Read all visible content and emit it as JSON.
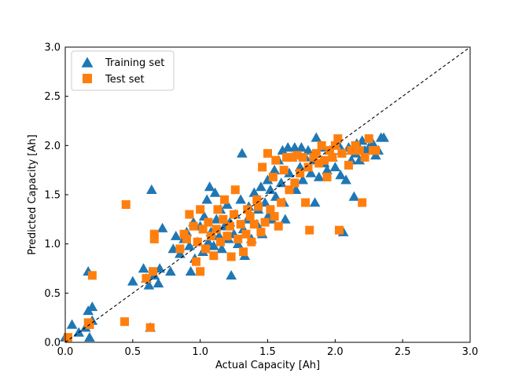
{
  "chart_data": {
    "type": "scatter",
    "title": "",
    "xlabel": "Actual Capacity [Ah]",
    "ylabel": "Predicted Capacity [Ah]",
    "xlim": [
      0.0,
      3.0
    ],
    "ylim": [
      0.0,
      3.0
    ],
    "xticks": [
      "0.0",
      "0.5",
      "1.0",
      "1.5",
      "2.0",
      "2.5",
      "3.0"
    ],
    "yticks": [
      "0.0",
      "0.5",
      "1.0",
      "1.5",
      "2.0",
      "2.5",
      "3.0"
    ],
    "tick_direction": "in",
    "grid": false,
    "legend_position": "top-left",
    "reference_line": {
      "label": "y = x",
      "style": "dashed",
      "color": "#000000",
      "from": [
        0,
        0
      ],
      "to": [
        3,
        3
      ]
    },
    "series": [
      {
        "name": "Training set",
        "marker": "triangle",
        "color": "#1f77b4",
        "points": [
          [
            0.0,
            0.05
          ],
          [
            0.05,
            0.18
          ],
          [
            0.1,
            0.1
          ],
          [
            0.15,
            0.15
          ],
          [
            0.17,
            0.32
          ],
          [
            0.17,
            0.72
          ],
          [
            0.18,
            0.05
          ],
          [
            0.2,
            0.22
          ],
          [
            0.2,
            0.36
          ],
          [
            0.5,
            0.62
          ],
          [
            0.58,
            0.75
          ],
          [
            0.6,
            0.65
          ],
          [
            0.62,
            0.58
          ],
          [
            0.63,
            0.15
          ],
          [
            0.64,
            1.55
          ],
          [
            0.66,
            0.68
          ],
          [
            0.69,
            0.6
          ],
          [
            0.7,
            0.75
          ],
          [
            0.72,
            1.16
          ],
          [
            0.78,
            0.72
          ],
          [
            0.8,
            0.95
          ],
          [
            0.82,
            1.08
          ],
          [
            0.85,
            0.9
          ],
          [
            0.88,
            1.05
          ],
          [
            0.9,
            1.12
          ],
          [
            0.92,
            0.98
          ],
          [
            0.93,
            0.72
          ],
          [
            0.95,
            1.22
          ],
          [
            0.96,
            0.85
          ],
          [
            0.98,
            1.02
          ],
          [
            1.0,
            1.18
          ],
          [
            1.02,
            0.92
          ],
          [
            1.03,
            1.28
          ],
          [
            1.05,
            1.45
          ],
          [
            1.06,
            1.02
          ],
          [
            1.07,
            1.58
          ],
          [
            1.08,
            1.12
          ],
          [
            1.1,
            0.98
          ],
          [
            1.11,
            1.52
          ],
          [
            1.12,
            1.25
          ],
          [
            1.14,
            1.08
          ],
          [
            1.15,
            1.35
          ],
          [
            1.16,
            0.95
          ],
          [
            1.18,
            1.18
          ],
          [
            1.2,
            1.4
          ],
          [
            1.21,
            1.05
          ],
          [
            1.22,
            1.22
          ],
          [
            1.23,
            0.68
          ],
          [
            1.25,
            1.1
          ],
          [
            1.26,
            1.3
          ],
          [
            1.28,
            1.0
          ],
          [
            1.3,
            1.45
          ],
          [
            1.31,
            1.92
          ],
          [
            1.32,
            1.15
          ],
          [
            1.33,
            0.88
          ],
          [
            1.35,
            1.25
          ],
          [
            1.36,
            1.38
          ],
          [
            1.38,
            1.05
          ],
          [
            1.4,
            1.52
          ],
          [
            1.42,
            1.2
          ],
          [
            1.43,
            1.35
          ],
          [
            1.45,
            1.58
          ],
          [
            1.46,
            1.1
          ],
          [
            1.48,
            1.42
          ],
          [
            1.5,
            1.65
          ],
          [
            1.51,
            1.3
          ],
          [
            1.52,
            1.55
          ],
          [
            1.53,
            1.25
          ],
          [
            1.55,
            1.75
          ],
          [
            1.56,
            1.48
          ],
          [
            1.58,
            1.85
          ],
          [
            1.6,
            1.62
          ],
          [
            1.61,
            1.95
          ],
          [
            1.62,
            1.42
          ],
          [
            1.63,
            1.25
          ],
          [
            1.65,
            1.98
          ],
          [
            1.66,
            1.72
          ],
          [
            1.68,
            1.88
          ],
          [
            1.7,
            1.98
          ],
          [
            1.71,
            1.55
          ],
          [
            1.72,
            1.92
          ],
          [
            1.74,
            1.78
          ],
          [
            1.75,
            1.98
          ],
          [
            1.76,
            1.65
          ],
          [
            1.78,
            1.88
          ],
          [
            1.8,
            1.95
          ],
          [
            1.82,
            1.72
          ],
          [
            1.84,
            1.85
          ],
          [
            1.85,
            1.42
          ],
          [
            1.86,
            2.08
          ],
          [
            1.88,
            1.68
          ],
          [
            1.9,
            1.98
          ],
          [
            1.92,
            1.82
          ],
          [
            1.94,
            1.75
          ],
          [
            1.96,
            1.95
          ],
          [
            1.98,
            1.88
          ],
          [
            2.0,
            1.78
          ],
          [
            2.02,
            2.02
          ],
          [
            2.04,
            1.7
          ],
          [
            2.05,
            1.95
          ],
          [
            2.06,
            1.12
          ],
          [
            2.08,
            1.65
          ],
          [
            2.1,
            1.98
          ],
          [
            2.12,
            1.85
          ],
          [
            2.14,
            1.48
          ],
          [
            2.15,
            1.92
          ],
          [
            2.16,
            2.02
          ],
          [
            2.18,
            1.85
          ],
          [
            2.2,
            2.05
          ],
          [
            2.22,
            1.95
          ],
          [
            2.25,
            1.98
          ],
          [
            2.28,
            2.02
          ],
          [
            2.3,
            1.9
          ],
          [
            2.32,
            1.95
          ],
          [
            2.34,
            2.08
          ],
          [
            2.36,
            2.08
          ]
        ]
      },
      {
        "name": "Test set",
        "marker": "square",
        "color": "#ff7f0e",
        "points": [
          [
            0.02,
            0.05
          ],
          [
            0.17,
            0.2
          ],
          [
            0.18,
            0.18
          ],
          [
            0.2,
            0.68
          ],
          [
            0.44,
            0.21
          ],
          [
            0.45,
            1.4
          ],
          [
            0.6,
            0.65
          ],
          [
            0.63,
            0.15
          ],
          [
            0.65,
            0.72
          ],
          [
            0.66,
            1.05
          ],
          [
            0.66,
            1.1
          ],
          [
            0.85,
            0.95
          ],
          [
            0.88,
            1.1
          ],
          [
            0.9,
            1.05
          ],
          [
            0.92,
            1.3
          ],
          [
            0.95,
            1.18
          ],
          [
            0.97,
            0.82
          ],
          [
            0.98,
            1.02
          ],
          [
            1.0,
            0.72
          ],
          [
            1.0,
            1.35
          ],
          [
            1.02,
            1.15
          ],
          [
            1.04,
            0.95
          ],
          [
            1.06,
            1.22
          ],
          [
            1.08,
            1.08
          ],
          [
            1.1,
            0.88
          ],
          [
            1.12,
            1.15
          ],
          [
            1.13,
            1.35
          ],
          [
            1.15,
            1.02
          ],
          [
            1.17,
            1.25
          ],
          [
            1.18,
            1.45
          ],
          [
            1.2,
            1.08
          ],
          [
            1.22,
            1.18
          ],
          [
            1.23,
            0.87
          ],
          [
            1.25,
            1.3
          ],
          [
            1.26,
            1.55
          ],
          [
            1.28,
            1.05
          ],
          [
            1.3,
            1.2
          ],
          [
            1.32,
            0.92
          ],
          [
            1.34,
            1.1
          ],
          [
            1.35,
            1.35
          ],
          [
            1.37,
            1.28
          ],
          [
            1.38,
            1.02
          ],
          [
            1.4,
            1.2
          ],
          [
            1.42,
            1.45
          ],
          [
            1.43,
            1.38
          ],
          [
            1.45,
            1.12
          ],
          [
            1.46,
            1.78
          ],
          [
            1.48,
            1.22
          ],
          [
            1.5,
            1.92
          ],
          [
            1.52,
            1.35
          ],
          [
            1.54,
            1.68
          ],
          [
            1.55,
            1.28
          ],
          [
            1.56,
            1.85
          ],
          [
            1.58,
            1.18
          ],
          [
            1.6,
            1.42
          ],
          [
            1.62,
            1.75
          ],
          [
            1.64,
            1.88
          ],
          [
            1.66,
            1.55
          ],
          [
            1.68,
            1.88
          ],
          [
            1.7,
            1.62
          ],
          [
            1.72,
            1.9
          ],
          [
            1.74,
            1.72
          ],
          [
            1.76,
            1.88
          ],
          [
            1.78,
            1.42
          ],
          [
            1.8,
            1.78
          ],
          [
            1.81,
            1.14
          ],
          [
            1.84,
            1.88
          ],
          [
            1.86,
            1.92
          ],
          [
            1.88,
            1.82
          ],
          [
            1.9,
            2.0
          ],
          [
            1.92,
            1.85
          ],
          [
            1.94,
            1.68
          ],
          [
            1.96,
            1.95
          ],
          [
            1.98,
            1.88
          ],
          [
            2.0,
            2.0
          ],
          [
            2.02,
            2.07
          ],
          [
            2.03,
            1.14
          ],
          [
            2.05,
            1.92
          ],
          [
            2.1,
            1.8
          ],
          [
            2.12,
            1.95
          ],
          [
            2.15,
            2.0
          ],
          [
            2.18,
            1.95
          ],
          [
            2.2,
            1.42
          ],
          [
            2.22,
            1.88
          ],
          [
            2.25,
            2.07
          ],
          [
            2.28,
            1.95
          ],
          [
            2.3,
            1.95
          ]
        ]
      }
    ]
  }
}
